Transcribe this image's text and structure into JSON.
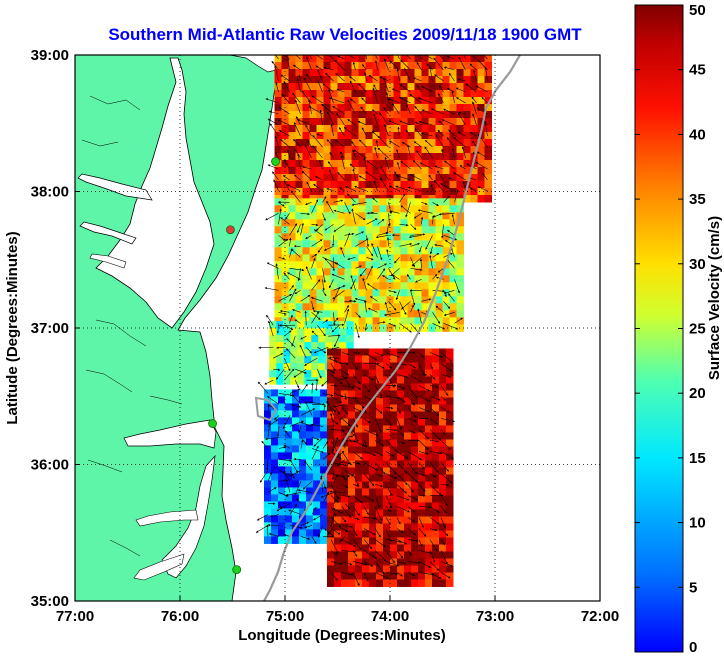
{
  "figure": {
    "title": "Southern Mid-Atlantic Raw Velocities 2009/11/18 1900 GMT",
    "xlabel": "Longitude (Degrees:Minutes)",
    "ylabel": "Latitude (Degrees:Minutes)",
    "x_ticks": [
      "77:00",
      "76:00",
      "75:00",
      "74:00",
      "73:00",
      "72:00"
    ],
    "y_ticks": [
      "39:00",
      "38:00",
      "37:00",
      "36:00",
      "35:00"
    ],
    "x_range": [
      -77,
      -72
    ],
    "y_range": [
      35,
      39
    ],
    "grid": "dotted"
  },
  "colorbar": {
    "label": "Surface Velocity (cm/s)",
    "ticks": [
      "0",
      "5",
      "10",
      "15",
      "20",
      "25",
      "30",
      "35",
      "40",
      "45",
      "50"
    ],
    "range": [
      0,
      50
    ],
    "colormap": "jet"
  },
  "colors": {
    "land": "#5ef5a8",
    "water": "#ffffff",
    "shelf_contour": "#9a9a9a",
    "station": "#1ad31a",
    "station_alt": "#e33a3a",
    "title": "#0000ff"
  },
  "stations": [
    {
      "lon": -74.8,
      "lat": 39.03,
      "color": "green"
    },
    {
      "lon": -75.09,
      "lat": 38.22,
      "color": "green"
    },
    {
      "lon": -75.52,
      "lat": 37.72,
      "color": "red"
    },
    {
      "lon": -75.69,
      "lat": 36.3,
      "color": "green"
    },
    {
      "lon": -75.46,
      "lat": 35.23,
      "color": "green"
    }
  ],
  "velocity_field": {
    "regions": [
      {
        "name": "north-block",
        "lon_range": [
          -75.1,
          -73.05
        ],
        "lat_range": [
          37.95,
          39.0
        ],
        "speed": 42
      },
      {
        "name": "central-band",
        "lon_range": [
          -75.1,
          -73.3
        ],
        "lat_range": [
          37.0,
          37.95
        ],
        "speed": 30
      },
      {
        "name": "mid-mixed",
        "lon_range": [
          -75.15,
          -74.4
        ],
        "lat_range": [
          36.6,
          37.05
        ],
        "speed": 24
      },
      {
        "name": "south-slow",
        "lon_range": [
          -75.2,
          -74.4
        ],
        "lat_range": [
          35.45,
          36.55
        ],
        "speed": 13
      },
      {
        "name": "south-fast",
        "lon_range": [
          -74.6,
          -73.45
        ],
        "lat_range": [
          35.15,
          36.85
        ],
        "speed": 47
      }
    ]
  }
}
